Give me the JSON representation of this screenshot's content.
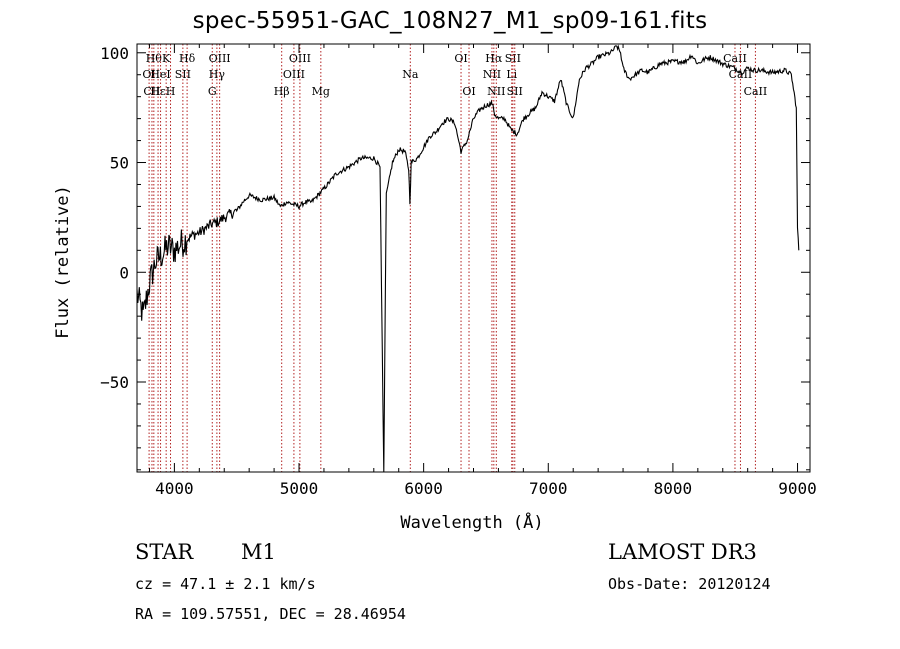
{
  "chart_data": {
    "type": "line",
    "title": "spec-55951-GAC_108N27_M1_sp09-161.fits",
    "xlabel": "Wavelength (Å)",
    "ylabel": "Flux (relative)",
    "xlim": [
      3700,
      9100
    ],
    "ylim": [
      -91,
      104
    ],
    "x_ticks": [
      4000,
      5000,
      6000,
      7000,
      8000,
      9000
    ],
    "y_ticks": [
      -50,
      0,
      50,
      100
    ],
    "series": [
      {
        "name": "spectrum",
        "color": "#000000",
        "x": [
          3700,
          3750,
          3800,
          3850,
          3900,
          3950,
          4000,
          4050,
          4100,
          4150,
          4200,
          4250,
          4300,
          4350,
          4400,
          4500,
          4550,
          4600,
          4700,
          4800,
          4850,
          4900,
          5000,
          5050,
          5100,
          5150,
          5200,
          5300,
          5400,
          5500,
          5600,
          5650,
          5680,
          5700,
          5750,
          5800,
          5850,
          5880,
          5890,
          5900,
          5950,
          6000,
          6050,
          6100,
          6150,
          6200,
          6250,
          6300,
          6350,
          6400,
          6450,
          6500,
          6550,
          6570,
          6600,
          6650,
          6700,
          6750,
          6800,
          6900,
          6950,
          7000,
          7050,
          7100,
          7150,
          7200,
          7250,
          7300,
          7350,
          7400,
          7450,
          7500,
          7550,
          7580,
          7600,
          7650,
          7700,
          7750,
          7800,
          7900,
          8000,
          8100,
          8150,
          8200,
          8250,
          8300,
          8400,
          8500,
          8550,
          8600,
          8650,
          8700,
          8800,
          8900,
          8950,
          8990,
          9000,
          9010
        ],
        "values": [
          -10,
          -20,
          -5,
          5,
          8,
          12,
          10,
          13,
          15,
          17,
          18,
          20,
          22,
          23,
          25,
          28,
          32,
          35,
          33,
          34,
          30,
          32,
          30,
          32,
          32,
          35,
          38,
          45,
          48,
          52,
          52,
          48,
          -91,
          35,
          50,
          56,
          55,
          47,
          32,
          50,
          52,
          57,
          62,
          64,
          68,
          70,
          68,
          55,
          60,
          70,
          74,
          76,
          77,
          72,
          70,
          70,
          65,
          63,
          70,
          75,
          82,
          80,
          78,
          88,
          76,
          70,
          88,
          93,
          95,
          98,
          99,
          100,
          103,
          100,
          93,
          88,
          90,
          92,
          91,
          95,
          96,
          96,
          99,
          95,
          97,
          98,
          95,
          93,
          91,
          93,
          92,
          92,
          91,
          92,
          90,
          75,
          20,
          10
        ]
      }
    ],
    "lines": [
      {
        "w": 3797,
        "label": "OI",
        "row": 1
      },
      {
        "w": 3820,
        "label": "CII",
        "row": 2
      },
      {
        "w": 3835,
        "label": "Hθ",
        "row": 0
      },
      {
        "w": 3869,
        "label": "Hε",
        "row": 2
      },
      {
        "w": 3889,
        "label": "HeI",
        "row": 1
      },
      {
        "w": 3934,
        "label": "K",
        "row": 0
      },
      {
        "w": 3969,
        "label": "H",
        "row": 2
      },
      {
        "w": 4068,
        "label": "SII",
        "row": 1
      },
      {
        "w": 4102,
        "label": "Hδ",
        "row": 0
      },
      {
        "w": 4304,
        "label": "G",
        "row": 2
      },
      {
        "w": 4341,
        "label": "Hγ",
        "row": 1
      },
      {
        "w": 4363,
        "label": "OIII",
        "row": 0
      },
      {
        "w": 4861,
        "label": "Hβ",
        "row": 2
      },
      {
        "w": 4959,
        "label": "OIII",
        "row": 1
      },
      {
        "w": 5007,
        "label": "OIII",
        "row": 0
      },
      {
        "w": 5175,
        "label": "Mg",
        "row": 2
      },
      {
        "w": 5893,
        "label": "Na",
        "row": 1
      },
      {
        "w": 6300,
        "label": "OI",
        "row": 0
      },
      {
        "w": 6364,
        "label": "OI",
        "row": 2
      },
      {
        "w": 6548,
        "label": "NII",
        "row": 1
      },
      {
        "w": 6563,
        "label": "Hα",
        "row": 0
      },
      {
        "w": 6583,
        "label": "NII",
        "row": 2
      },
      {
        "w": 6707,
        "label": "Li",
        "row": 1
      },
      {
        "w": 6716,
        "label": "SII",
        "row": 0
      },
      {
        "w": 6731,
        "label": "SII",
        "row": 2
      },
      {
        "w": 8498,
        "label": "CaII",
        "row": 0
      },
      {
        "w": 8542,
        "label": "CaII",
        "row": 1
      },
      {
        "w": 8662,
        "label": "CaII",
        "row": 2
      }
    ]
  },
  "info": {
    "class": "STAR",
    "subclass": "M1",
    "survey": "LAMOST DR3",
    "cz": "cz = 47.1 ± 2.1 km/s",
    "obs_date": "Obs-Date: 20120124",
    "coords": "RA = 109.57551, DEC =  28.46954"
  },
  "colors": {
    "axis": "#000000",
    "line_marker": "#b22222"
  }
}
